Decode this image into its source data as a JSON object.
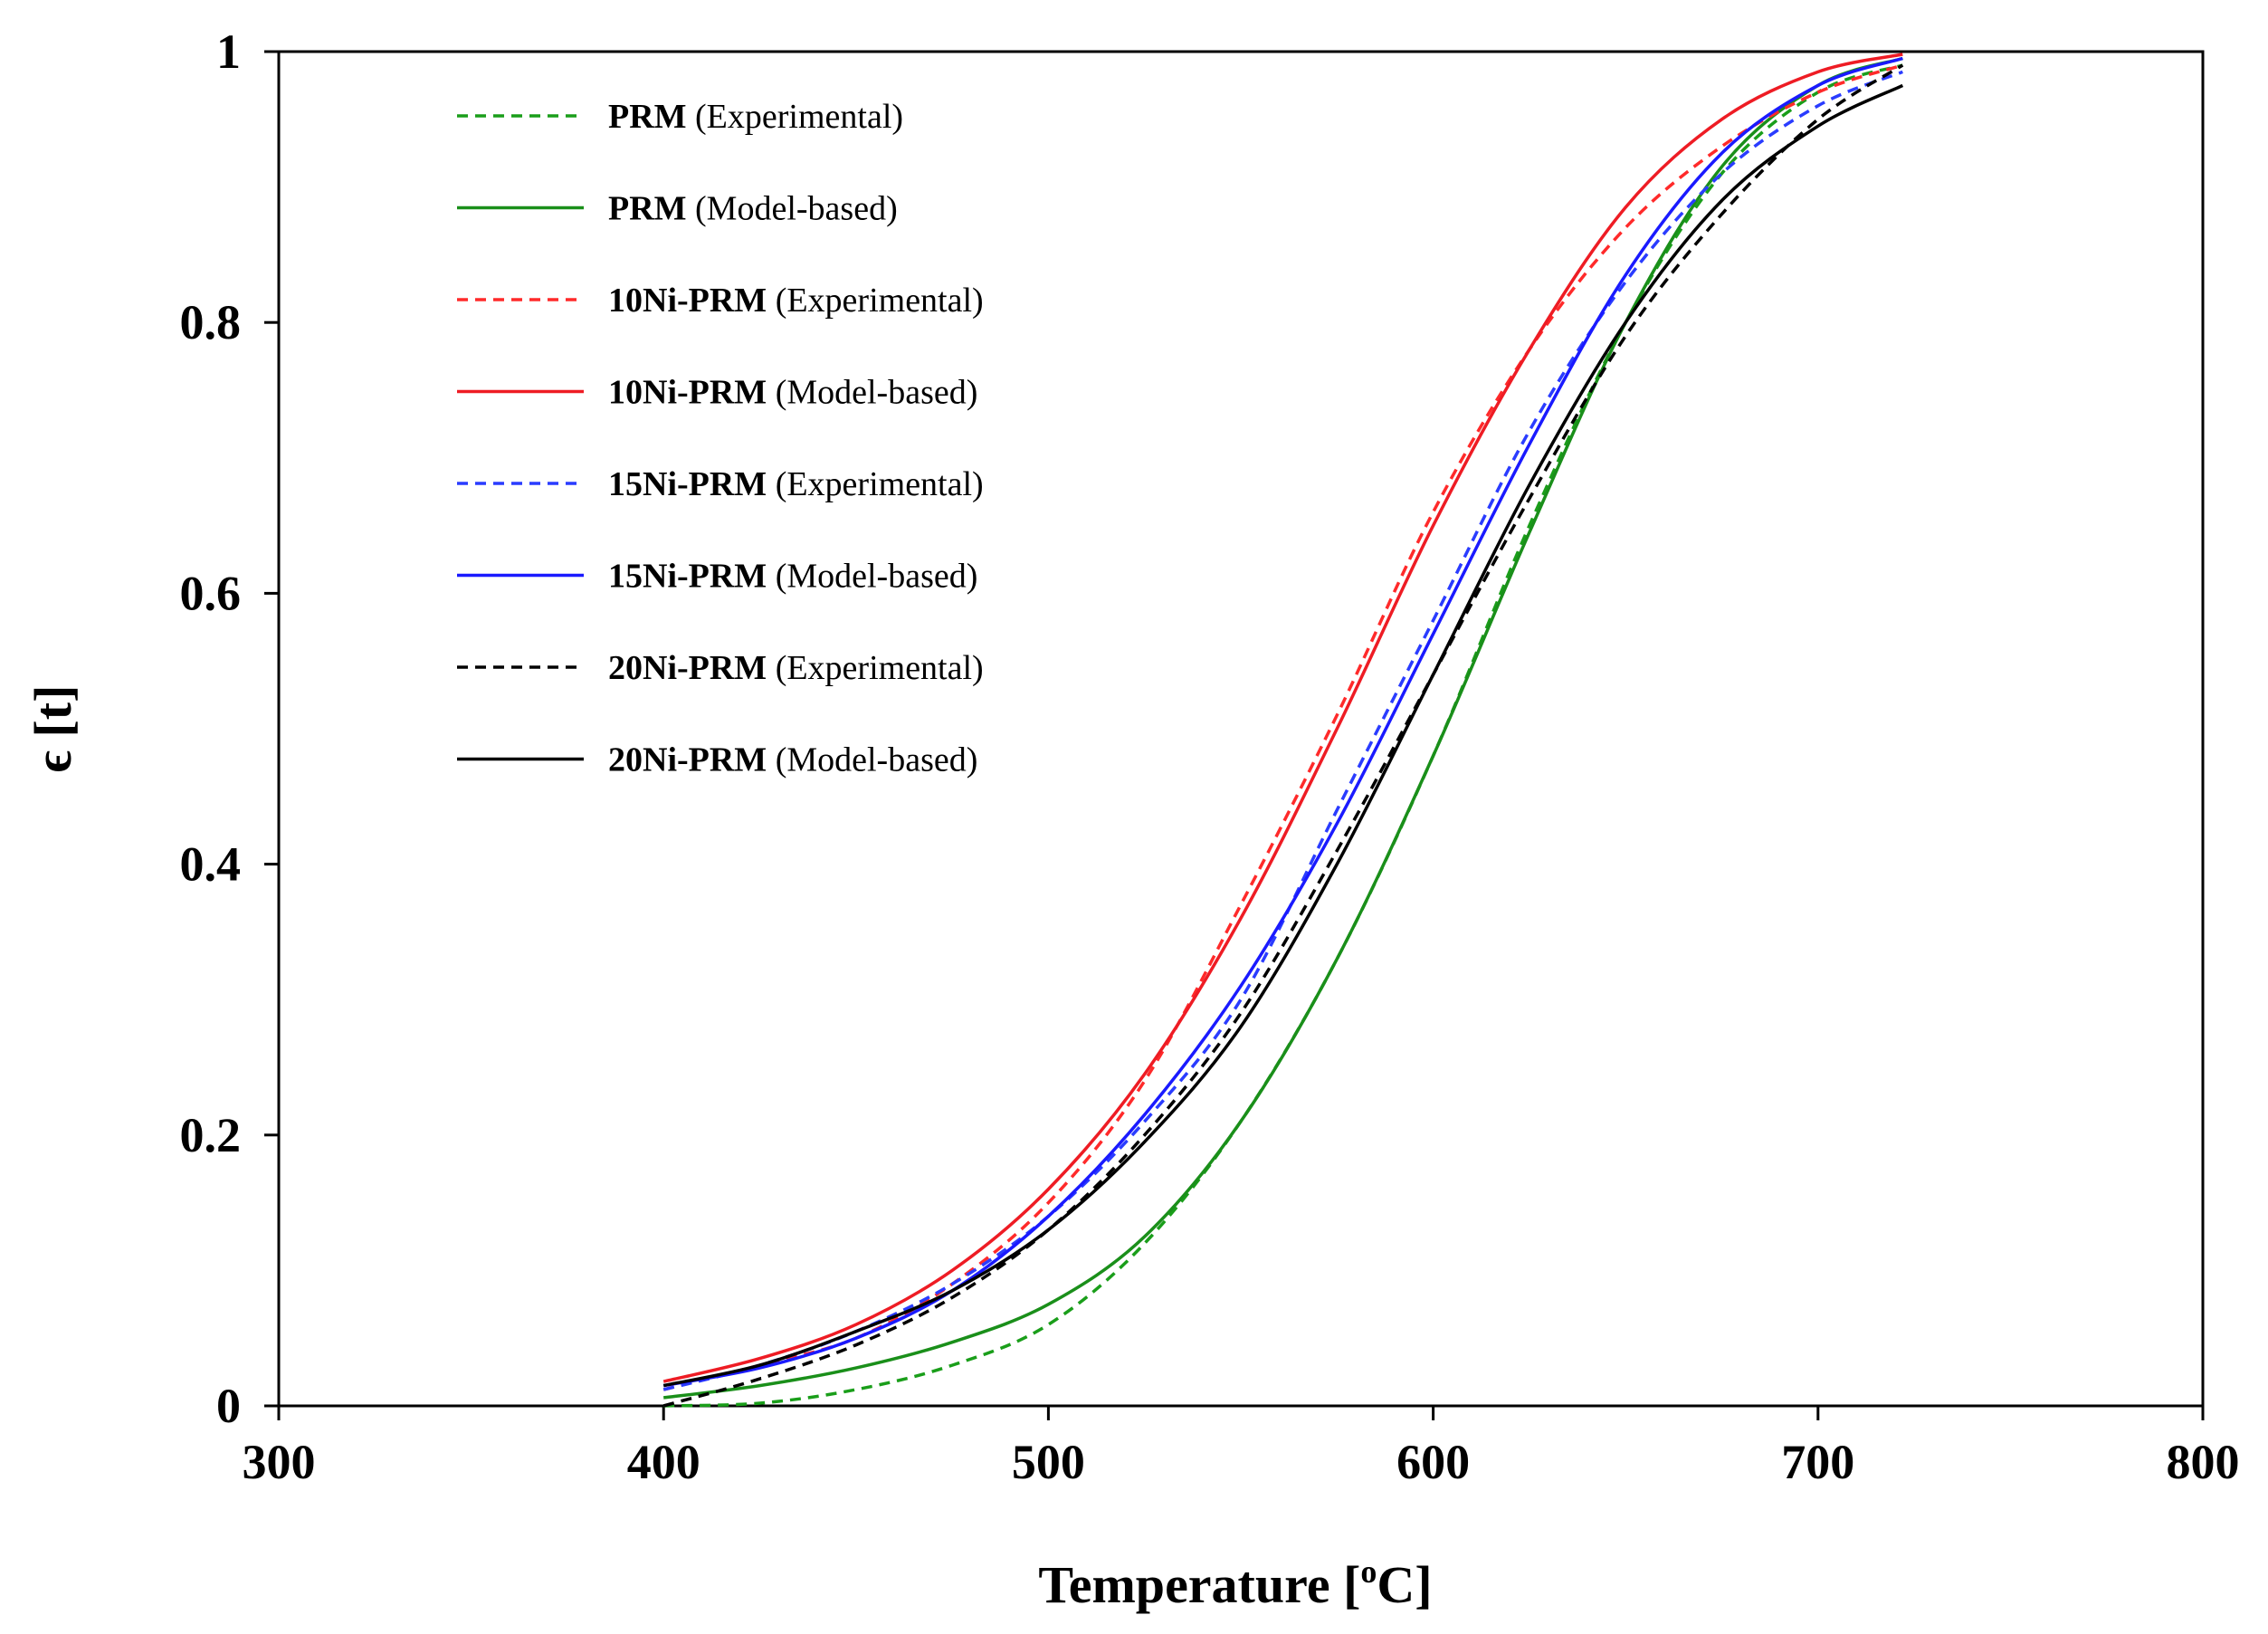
{
  "chart_data": {
    "type": "line",
    "title": "",
    "xlabel": {
      "main": "Temperature [",
      "sup": "o",
      "end": "C]"
    },
    "ylabel": "ϵ [t]",
    "xlim": [
      300,
      800
    ],
    "ylim": [
      0,
      1
    ],
    "xticks": [
      300,
      400,
      500,
      600,
      700,
      800
    ],
    "yticks": [
      0,
      0.2,
      0.4,
      0.6,
      0.8,
      1
    ],
    "xtick_labels": [
      "300",
      "400",
      "500",
      "600",
      "700",
      "800"
    ],
    "ytick_labels": [
      "0",
      "0.2",
      "0.4",
      "0.6",
      "0.8",
      "1"
    ],
    "grid": false,
    "legend_position": "top-left",
    "series": [
      {
        "name": "PRM",
        "suffix": "(Experimental)",
        "color": "#1a9e1a",
        "dash": true,
        "x": [
          400,
          425,
          450,
          475,
          500,
          525,
          550,
          575,
          600,
          625,
          650,
          675,
          700,
          722
        ],
        "y": [
          0.0,
          0.002,
          0.012,
          0.03,
          0.06,
          0.12,
          0.21,
          0.33,
          0.48,
          0.65,
          0.8,
          0.91,
          0.97,
          0.99
        ]
      },
      {
        "name": "PRM",
        "suffix": "(Model-based)",
        "color": "#1a8f1a",
        "dash": false,
        "x": [
          400,
          425,
          450,
          475,
          500,
          525,
          550,
          575,
          600,
          625,
          650,
          675,
          700,
          722
        ],
        "y": [
          0.006,
          0.015,
          0.028,
          0.047,
          0.075,
          0.125,
          0.21,
          0.33,
          0.48,
          0.645,
          0.8,
          0.915,
          0.975,
          0.995
        ]
      },
      {
        "name": "10Ni-PRM",
        "suffix": "(Experimental)",
        "color": "#ff2a2a",
        "dash": true,
        "x": [
          400,
          425,
          450,
          475,
          500,
          525,
          550,
          575,
          600,
          625,
          650,
          675,
          700,
          722
        ],
        "y": [
          0.012,
          0.03,
          0.05,
          0.09,
          0.15,
          0.24,
          0.37,
          0.51,
          0.66,
          0.78,
          0.87,
          0.93,
          0.97,
          0.99
        ]
      },
      {
        "name": "10Ni-PRM",
        "suffix": "(Model-based)",
        "color": "#ee1c24",
        "dash": false,
        "x": [
          400,
          425,
          450,
          475,
          500,
          525,
          550,
          575,
          600,
          625,
          650,
          675,
          700,
          722
        ],
        "y": [
          0.018,
          0.035,
          0.06,
          0.1,
          0.16,
          0.245,
          0.36,
          0.5,
          0.65,
          0.78,
          0.885,
          0.95,
          0.985,
          0.998
        ]
      },
      {
        "name": "15Ni-PRM",
        "suffix": "(Experimental)",
        "color": "#2a3cff",
        "dash": true,
        "x": [
          400,
          425,
          450,
          475,
          500,
          525,
          550,
          575,
          600,
          625,
          650,
          675,
          700,
          722
        ],
        "y": [
          0.012,
          0.03,
          0.055,
          0.09,
          0.14,
          0.21,
          0.3,
          0.44,
          0.58,
          0.72,
          0.83,
          0.91,
          0.96,
          0.985
        ]
      },
      {
        "name": "15Ni-PRM",
        "suffix": "(Model-based)",
        "color": "#1a1aff",
        "dash": false,
        "x": [
          400,
          425,
          450,
          475,
          500,
          525,
          550,
          575,
          600,
          625,
          650,
          675,
          700,
          722
        ],
        "y": [
          0.015,
          0.028,
          0.05,
          0.085,
          0.14,
          0.215,
          0.31,
          0.43,
          0.57,
          0.71,
          0.835,
          0.925,
          0.975,
          0.995
        ]
      },
      {
        "name": "20Ni-PRM",
        "suffix": "(Experimental)",
        "color": "#000000",
        "dash": true,
        "x": [
          400,
          425,
          450,
          475,
          500,
          525,
          550,
          575,
          600,
          625,
          650,
          675,
          700,
          722
        ],
        "y": [
          0.0,
          0.02,
          0.045,
          0.08,
          0.13,
          0.2,
          0.29,
          0.41,
          0.54,
          0.67,
          0.79,
          0.88,
          0.95,
          0.99
        ]
      },
      {
        "name": "20Ni-PRM",
        "suffix": "(Model-based)",
        "color": "#000000",
        "dash": false,
        "x": [
          400,
          425,
          450,
          475,
          500,
          525,
          550,
          575,
          600,
          625,
          650,
          675,
          700,
          722
        ],
        "y": [
          0.015,
          0.03,
          0.055,
          0.085,
          0.13,
          0.195,
          0.28,
          0.4,
          0.54,
          0.68,
          0.8,
          0.89,
          0.945,
          0.975
        ]
      }
    ]
  }
}
